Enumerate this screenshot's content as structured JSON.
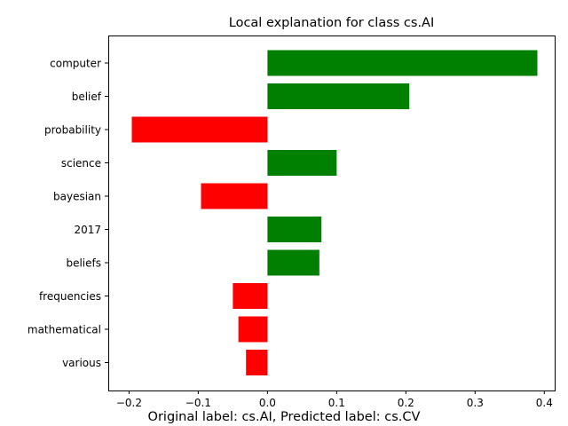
{
  "chart_data": {
    "type": "bar",
    "orientation": "horizontal",
    "title": "Local explanation for class cs.AI",
    "xlabel": "",
    "ylabel": "",
    "xlim": [
      -0.23,
      0.415
    ],
    "xticks": [
      -0.2,
      -0.1,
      0.0,
      0.1,
      0.2,
      0.3,
      0.4
    ],
    "xtick_labels": [
      "−0.2",
      "−0.1",
      "0.0",
      "0.1",
      "0.2",
      "0.3",
      "0.4"
    ],
    "grid": false,
    "legend": "none",
    "categories": [
      "computer",
      "belief",
      "probability",
      "science",
      "bayesian",
      "2017",
      "beliefs",
      "frequencies",
      "mathematical",
      "various"
    ],
    "values": [
      0.39,
      0.205,
      -0.196,
      0.1,
      -0.096,
      0.078,
      0.075,
      -0.05,
      -0.042,
      -0.031
    ],
    "colors": {
      "positive": "#008000",
      "negative": "#ff0000"
    },
    "annotation": "Original label: cs.AI, Predicted label: cs.CV"
  }
}
